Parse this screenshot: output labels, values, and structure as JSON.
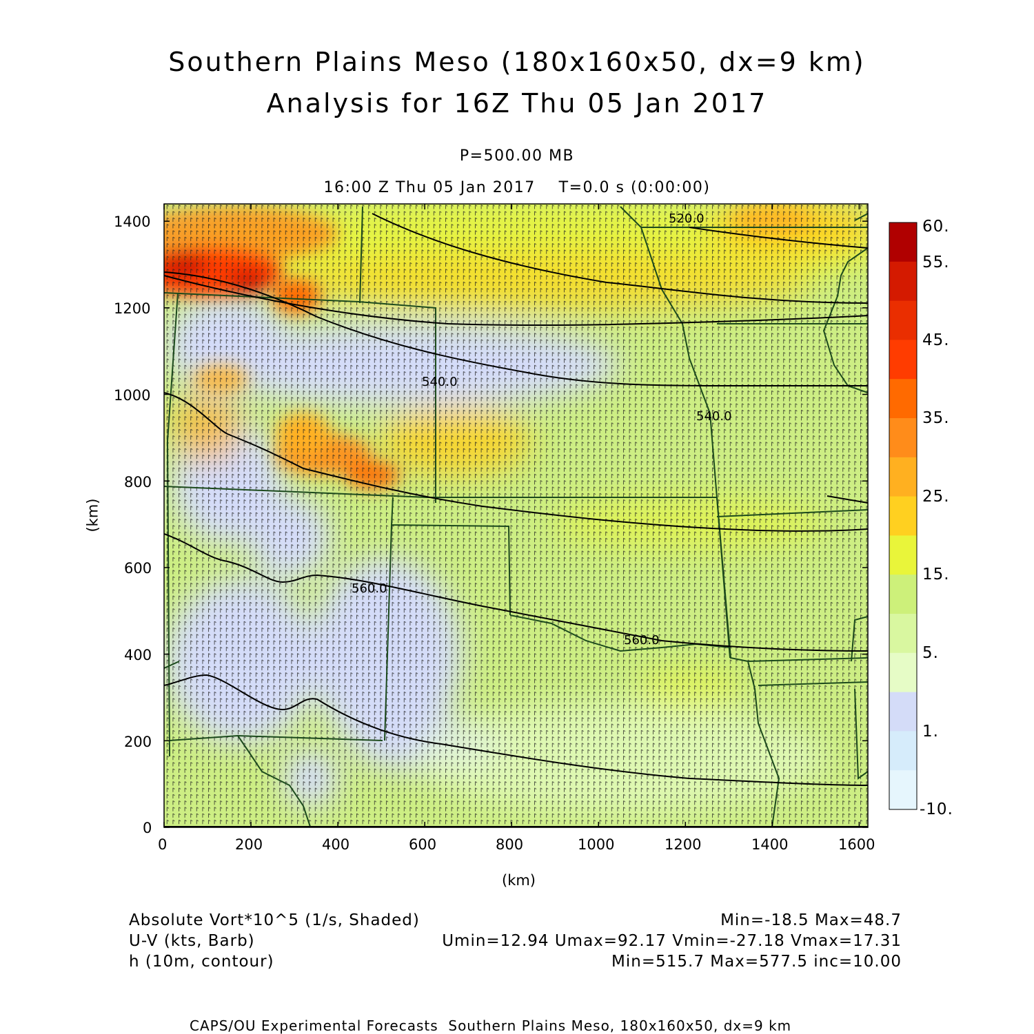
{
  "header": {
    "title_line1": "Southern Plains Meso (180x160x50, dx=9 km)",
    "title_line2": "Analysis for 16Z Thu 05 Jan 2017",
    "level": "P=500.00 MB",
    "valid_time": "16:00 Z Thu 05 Jan 2017    T=0.0 s (0:00:00)"
  },
  "axes": {
    "x_label": "(km)",
    "y_label": "(km)",
    "x_ticks": [
      "0",
      "200",
      "400",
      "600",
      "800",
      "1000",
      "1200",
      "1400",
      "1600"
    ],
    "y_ticks": [
      "0",
      "200",
      "400",
      "600",
      "800",
      "1000",
      "1200",
      "1400"
    ],
    "x_range_km": [
      0,
      1620
    ],
    "y_range_km": [
      0,
      1440
    ]
  },
  "colorbar": {
    "labels": [
      "60.",
      "55.",
      "45.",
      "35.",
      "25.",
      "15.",
      "5.",
      "1.",
      "-10."
    ],
    "colors": [
      "#b00000",
      "#d41a00",
      "#ea2e00",
      "#ff3c00",
      "#ff6a00",
      "#ff8c1a",
      "#ffb020",
      "#ffd020",
      "#e9f53a",
      "#cdf07a",
      "#d9f7a0",
      "#e6fcc6",
      "#d4dcf8",
      "#d6ecfb",
      "#e6f6fd"
    ]
  },
  "contours": {
    "labels": [
      "520.0",
      "540.0",
      "540.0",
      "560.0",
      "560.0"
    ]
  },
  "legend": {
    "field1_name": "Absolute Vort*10^5 (1/s, Shaded)",
    "field1_stats": "Min=-18.5 Max=48.7",
    "field2_name": "U-V (kts, Barb)",
    "field2_stats": "Umin=12.94 Umax=92.17 Vmin=-27.18 Vmax=17.31",
    "field3_name": "h (10m, contour)",
    "field3_stats": "Min=515.7 Max=577.5 inc=10.00"
  },
  "footer": "CAPS/OU Experimental Forecasts  Southern Plains Meso, 180x160x50, dx=9 km"
}
